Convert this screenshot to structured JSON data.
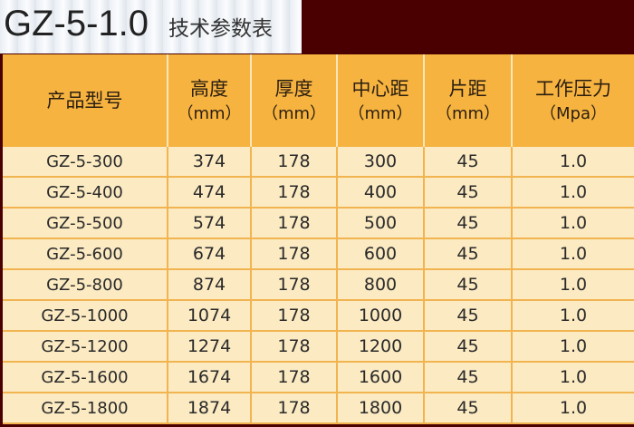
{
  "title": {
    "model": "GZ-5-1.0",
    "subtitle": "技术参数表"
  },
  "table": {
    "headers": [
      {
        "label": "产品型号",
        "unit": ""
      },
      {
        "label": "高度",
        "unit": "（mm）"
      },
      {
        "label": "厚度",
        "unit": "（mm）"
      },
      {
        "label": "中心距",
        "unit": "（mm）"
      },
      {
        "label": "片距",
        "unit": "（mm）"
      },
      {
        "label": "工作压力",
        "unit": "（Mpa）"
      }
    ],
    "rows": [
      [
        "GZ-5-300",
        "374",
        "178",
        "300",
        "45",
        "1.0"
      ],
      [
        "GZ-5-400",
        "474",
        "178",
        "400",
        "45",
        "1.0"
      ],
      [
        "GZ-5-500",
        "574",
        "178",
        "500",
        "45",
        "1.0"
      ],
      [
        "GZ-5-600",
        "674",
        "178",
        "600",
        "45",
        "1.0"
      ],
      [
        "GZ-5-800",
        "874",
        "178",
        "800",
        "45",
        "1.0"
      ],
      [
        "GZ-5-1000",
        "1074",
        "178",
        "1000",
        "45",
        "1.0"
      ],
      [
        "GZ-5-1200",
        "1274",
        "178",
        "1200",
        "45",
        "1.0"
      ],
      [
        "GZ-5-1600",
        "1674",
        "178",
        "1600",
        "45",
        "1.0"
      ],
      [
        "GZ-5-1800",
        "1874",
        "178",
        "1800",
        "45",
        "1.0"
      ]
    ]
  },
  "colors": {
    "header": "#f6b340",
    "row": "#fbeac2",
    "frame": "#4a0000"
  }
}
